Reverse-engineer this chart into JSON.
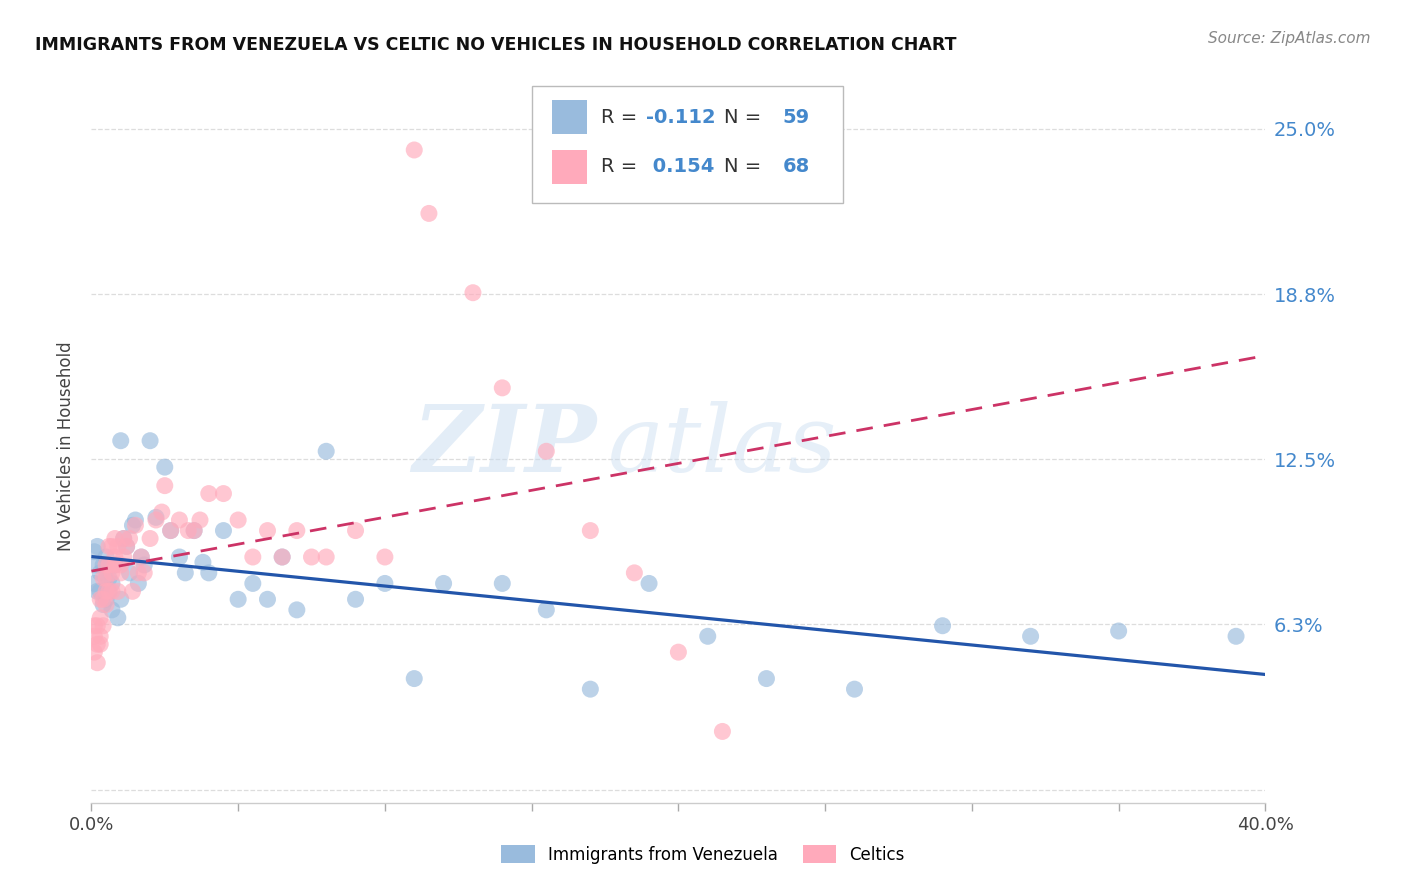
{
  "title": "IMMIGRANTS FROM VENEZUELA VS CELTIC NO VEHICLES IN HOUSEHOLD CORRELATION CHART",
  "source": "Source: ZipAtlas.com",
  "ylabel": "No Vehicles in Household",
  "legend_label1": "Immigrants from Venezuela",
  "legend_label2": "Celtics",
  "R1": -0.112,
  "N1": 59,
  "R2": 0.154,
  "N2": 68,
  "color1": "#99BBDD",
  "color2": "#FFAABB",
  "line_color1": "#2255AA",
  "line_color2": "#CC3366",
  "xlim": [
    0.0,
    0.4
  ],
  "ylim": [
    -0.005,
    0.265
  ],
  "yticks": [
    0.0,
    0.0625,
    0.125,
    0.1875,
    0.25
  ],
  "ytick_labels": [
    "",
    "6.3%",
    "12.5%",
    "18.8%",
    "25.0%"
  ],
  "xticks": [
    0.0,
    0.05,
    0.1,
    0.15,
    0.2,
    0.25,
    0.3,
    0.35,
    0.4
  ],
  "xtick_labels": [
    "0.0%",
    "",
    "",
    "",
    "",
    "",
    "",
    "",
    "40.0%"
  ],
  "watermark_zip": "ZIP",
  "watermark_atlas": "atlas",
  "background_color": "#FFFFFF",
  "grid_color": "#DDDDDD",
  "tick_color": "#4488CC",
  "title_color": "#111111",
  "source_color": "#888888",
  "scatter1_x": [
    0.001,
    0.001,
    0.002,
    0.002,
    0.002,
    0.003,
    0.003,
    0.004,
    0.004,
    0.005,
    0.005,
    0.005,
    0.006,
    0.006,
    0.007,
    0.007,
    0.008,
    0.009,
    0.01,
    0.01,
    0.011,
    0.012,
    0.013,
    0.014,
    0.015,
    0.016,
    0.017,
    0.018,
    0.02,
    0.022,
    0.025,
    0.027,
    0.03,
    0.032,
    0.035,
    0.038,
    0.04,
    0.045,
    0.05,
    0.055,
    0.06,
    0.065,
    0.07,
    0.08,
    0.09,
    0.1,
    0.11,
    0.12,
    0.14,
    0.155,
    0.17,
    0.19,
    0.21,
    0.23,
    0.26,
    0.29,
    0.32,
    0.35,
    0.39
  ],
  "scatter1_y": [
    0.09,
    0.078,
    0.085,
    0.075,
    0.092,
    0.082,
    0.075,
    0.085,
    0.07,
    0.08,
    0.072,
    0.088,
    0.075,
    0.08,
    0.068,
    0.078,
    0.085,
    0.065,
    0.132,
    0.072,
    0.095,
    0.092,
    0.082,
    0.1,
    0.102,
    0.078,
    0.088,
    0.085,
    0.132,
    0.103,
    0.122,
    0.098,
    0.088,
    0.082,
    0.098,
    0.086,
    0.082,
    0.098,
    0.072,
    0.078,
    0.072,
    0.088,
    0.068,
    0.128,
    0.072,
    0.078,
    0.042,
    0.078,
    0.078,
    0.068,
    0.038,
    0.078,
    0.058,
    0.042,
    0.038,
    0.062,
    0.058,
    0.06,
    0.058
  ],
  "scatter2_x": [
    0.001,
    0.001,
    0.001,
    0.002,
    0.002,
    0.002,
    0.003,
    0.003,
    0.003,
    0.003,
    0.004,
    0.004,
    0.004,
    0.005,
    0.005,
    0.005,
    0.005,
    0.006,
    0.006,
    0.006,
    0.007,
    0.007,
    0.007,
    0.008,
    0.008,
    0.008,
    0.009,
    0.009,
    0.01,
    0.01,
    0.011,
    0.011,
    0.012,
    0.013,
    0.014,
    0.015,
    0.016,
    0.017,
    0.018,
    0.02,
    0.022,
    0.024,
    0.027,
    0.03,
    0.033,
    0.037,
    0.04,
    0.045,
    0.05,
    0.055,
    0.06,
    0.07,
    0.075,
    0.08,
    0.09,
    0.1,
    0.11,
    0.115,
    0.13,
    0.14,
    0.155,
    0.17,
    0.185,
    0.2,
    0.215,
    0.025,
    0.035,
    0.065
  ],
  "scatter2_y": [
    0.058,
    0.052,
    0.062,
    0.062,
    0.055,
    0.048,
    0.065,
    0.058,
    0.072,
    0.055,
    0.072,
    0.062,
    0.08,
    0.075,
    0.085,
    0.08,
    0.07,
    0.085,
    0.092,
    0.075,
    0.082,
    0.092,
    0.075,
    0.085,
    0.095,
    0.088,
    0.092,
    0.075,
    0.082,
    0.085,
    0.095,
    0.088,
    0.092,
    0.095,
    0.075,
    0.1,
    0.082,
    0.088,
    0.082,
    0.095,
    0.102,
    0.105,
    0.098,
    0.102,
    0.098,
    0.102,
    0.112,
    0.112,
    0.102,
    0.088,
    0.098,
    0.098,
    0.088,
    0.088,
    0.098,
    0.088,
    0.242,
    0.218,
    0.188,
    0.152,
    0.128,
    0.098,
    0.082,
    0.052,
    0.022,
    0.115,
    0.098,
    0.088
  ]
}
